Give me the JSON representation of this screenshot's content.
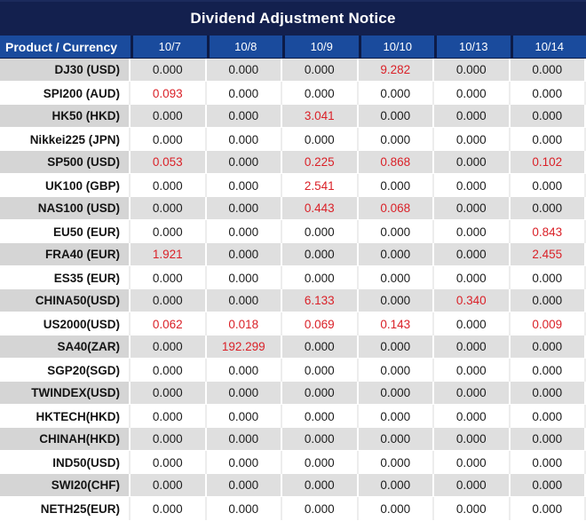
{
  "title": "Dividend Adjustment Notice",
  "colors": {
    "title_bg": "#13204e",
    "header_bg": "#1a4b9d",
    "stripe_label_gray": "#d5d5d5",
    "stripe_data_gray": "#dfdfdf",
    "negative_red": "#da2128",
    "text_black": "#1c1c1c",
    "header_text": "#ffffff"
  },
  "table": {
    "header": {
      "product_label": "Product / Currency",
      "dates": [
        "10/7",
        "10/8",
        "10/9",
        "10/10",
        "10/13",
        "10/14"
      ]
    },
    "rows": [
      {
        "product": "DJ30 (USD)",
        "values": [
          "0.000",
          "0.000",
          "0.000",
          "9.282",
          "0.000",
          "0.000"
        ],
        "red": [
          0,
          0,
          0,
          1,
          0,
          0
        ]
      },
      {
        "product": "SPI200 (AUD)",
        "values": [
          "0.093",
          "0.000",
          "0.000",
          "0.000",
          "0.000",
          "0.000"
        ],
        "red": [
          1,
          0,
          0,
          0,
          0,
          0
        ]
      },
      {
        "product": "HK50 (HKD)",
        "values": [
          "0.000",
          "0.000",
          "3.041",
          "0.000",
          "0.000",
          "0.000"
        ],
        "red": [
          0,
          0,
          1,
          0,
          0,
          0
        ]
      },
      {
        "product": "Nikkei225 (JPN)",
        "values": [
          "0.000",
          "0.000",
          "0.000",
          "0.000",
          "0.000",
          "0.000"
        ],
        "red": [
          0,
          0,
          0,
          0,
          0,
          0
        ]
      },
      {
        "product": "SP500 (USD)",
        "values": [
          "0.053",
          "0.000",
          "0.225",
          "0.868",
          "0.000",
          "0.102"
        ],
        "red": [
          1,
          0,
          1,
          1,
          0,
          1
        ]
      },
      {
        "product": "UK100 (GBP)",
        "values": [
          "0.000",
          "0.000",
          "2.541",
          "0.000",
          "0.000",
          "0.000"
        ],
        "red": [
          0,
          0,
          1,
          0,
          0,
          0
        ]
      },
      {
        "product": "NAS100 (USD)",
        "values": [
          "0.000",
          "0.000",
          "0.443",
          "0.068",
          "0.000",
          "0.000"
        ],
        "red": [
          0,
          0,
          1,
          1,
          0,
          0
        ]
      },
      {
        "product": "EU50 (EUR)",
        "values": [
          "0.000",
          "0.000",
          "0.000",
          "0.000",
          "0.000",
          "0.843"
        ],
        "red": [
          0,
          0,
          0,
          0,
          0,
          1
        ]
      },
      {
        "product": "FRA40 (EUR)",
        "values": [
          "1.921",
          "0.000",
          "0.000",
          "0.000",
          "0.000",
          "2.455"
        ],
        "red": [
          1,
          0,
          0,
          0,
          0,
          1
        ]
      },
      {
        "product": "ES35 (EUR)",
        "values": [
          "0.000",
          "0.000",
          "0.000",
          "0.000",
          "0.000",
          "0.000"
        ],
        "red": [
          0,
          0,
          0,
          0,
          0,
          0
        ]
      },
      {
        "product": "CHINA50(USD)",
        "values": [
          "0.000",
          "0.000",
          "6.133",
          "0.000",
          "0.340",
          "0.000"
        ],
        "red": [
          0,
          0,
          1,
          0,
          1,
          0
        ]
      },
      {
        "product": "US2000(USD)",
        "values": [
          "0.062",
          "0.018",
          "0.069",
          "0.143",
          "0.000",
          "0.009"
        ],
        "red": [
          1,
          1,
          1,
          1,
          0,
          1
        ]
      },
      {
        "product": "SA40(ZAR)",
        "values": [
          "0.000",
          "192.299",
          "0.000",
          "0.000",
          "0.000",
          "0.000"
        ],
        "red": [
          0,
          1,
          0,
          0,
          0,
          0
        ]
      },
      {
        "product": "SGP20(SGD)",
        "values": [
          "0.000",
          "0.000",
          "0.000",
          "0.000",
          "0.000",
          "0.000"
        ],
        "red": [
          0,
          0,
          0,
          0,
          0,
          0
        ]
      },
      {
        "product": "TWINDEX(USD)",
        "values": [
          "0.000",
          "0.000",
          "0.000",
          "0.000",
          "0.000",
          "0.000"
        ],
        "red": [
          0,
          0,
          0,
          0,
          0,
          0
        ]
      },
      {
        "product": "HKTECH(HKD)",
        "values": [
          "0.000",
          "0.000",
          "0.000",
          "0.000",
          "0.000",
          "0.000"
        ],
        "red": [
          0,
          0,
          0,
          0,
          0,
          0
        ]
      },
      {
        "product": "CHINAH(HKD)",
        "values": [
          "0.000",
          "0.000",
          "0.000",
          "0.000",
          "0.000",
          "0.000"
        ],
        "red": [
          0,
          0,
          0,
          0,
          0,
          0
        ]
      },
      {
        "product": "IND50(USD)",
        "values": [
          "0.000",
          "0.000",
          "0.000",
          "0.000",
          "0.000",
          "0.000"
        ],
        "red": [
          0,
          0,
          0,
          0,
          0,
          0
        ]
      },
      {
        "product": "SWI20(CHF)",
        "values": [
          "0.000",
          "0.000",
          "0.000",
          "0.000",
          "0.000",
          "0.000"
        ],
        "red": [
          0,
          0,
          0,
          0,
          0,
          0
        ]
      },
      {
        "product": "NETH25(EUR)",
        "values": [
          "0.000",
          "0.000",
          "0.000",
          "0.000",
          "0.000",
          "0.000"
        ],
        "red": [
          0,
          0,
          0,
          0,
          0,
          0
        ]
      }
    ]
  }
}
